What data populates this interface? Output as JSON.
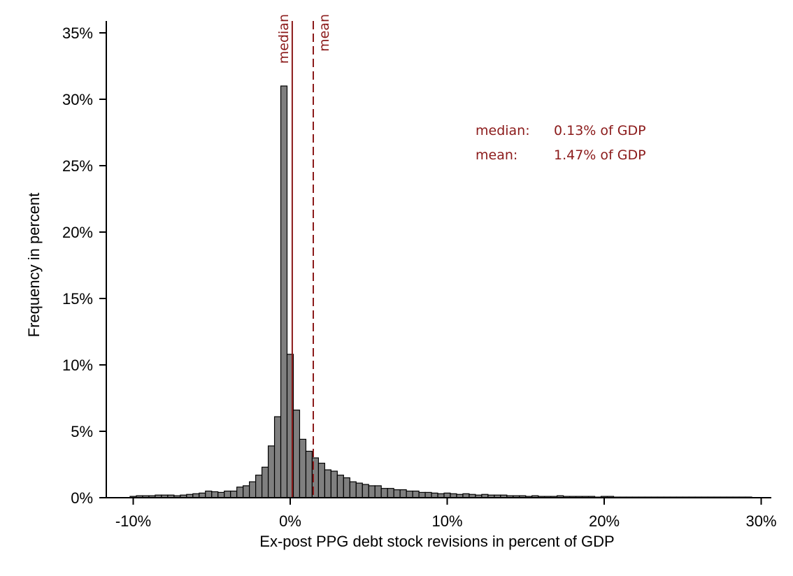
{
  "chart_data": {
    "type": "bar",
    "subtype": "histogram",
    "title": "",
    "xlabel": "Ex-post PPG debt stock revisions in percent of GDP",
    "ylabel": "Frequency in percent",
    "xlim": [
      -10.8,
      31
    ],
    "ylim": [
      0,
      35
    ],
    "x_ticks": [
      -10,
      0,
      10,
      20,
      30
    ],
    "x_tick_labels": [
      "-10%",
      "0%",
      "10%",
      "20%",
      "30%"
    ],
    "y_ticks": [
      0,
      5,
      10,
      15,
      20,
      25,
      30,
      35
    ],
    "y_tick_labels": [
      "0%",
      "5%",
      "10%",
      "15%",
      "20%",
      "25%",
      "30%",
      "35%"
    ],
    "grid": false,
    "bin_width": 0.4,
    "bins_start": [
      -10.2,
      -9.8,
      -9.4,
      -9.0,
      -8.6,
      -8.2,
      -7.8,
      -7.4,
      -7.0,
      -6.6,
      -6.2,
      -5.8,
      -5.4,
      -5.0,
      -4.6,
      -4.2,
      -3.8,
      -3.4,
      -3.0,
      -2.6,
      -2.2,
      -1.8,
      -1.4,
      -1.0,
      -0.6,
      -0.2,
      0.2,
      0.6,
      1.0,
      1.4,
      1.8,
      2.2,
      2.6,
      3.0,
      3.4,
      3.8,
      4.2,
      4.6,
      5.0,
      5.4,
      5.8,
      6.2,
      6.6,
      7.0,
      7.4,
      7.8,
      8.2,
      8.6,
      9.0,
      9.4,
      9.8,
      10.2,
      10.6,
      11.0,
      11.4,
      11.8,
      12.2,
      12.6,
      13.0,
      13.4,
      13.8,
      14.2,
      14.6,
      15.0,
      15.4,
      15.8,
      16.2,
      16.6,
      17.0,
      17.4,
      17.8,
      18.2,
      18.6,
      19.0,
      19.4,
      19.8,
      20.2,
      20.6,
      21.0,
      21.4,
      21.8,
      22.2,
      22.6,
      23.0,
      23.4,
      23.8,
      24.2,
      24.6,
      25.0,
      25.4,
      25.8,
      26.2,
      26.6,
      27.0,
      27.4,
      27.8,
      28.2,
      28.6,
      29.0
    ],
    "values": [
      0.1,
      0.15,
      0.15,
      0.15,
      0.2,
      0.2,
      0.2,
      0.15,
      0.2,
      0.25,
      0.3,
      0.35,
      0.5,
      0.45,
      0.4,
      0.5,
      0.5,
      0.8,
      0.9,
      1.2,
      1.7,
      2.3,
      3.9,
      6.1,
      31.0,
      10.8,
      6.6,
      4.4,
      3.5,
      3.0,
      2.6,
      2.1,
      2.0,
      1.7,
      1.5,
      1.2,
      1.1,
      1.0,
      0.9,
      0.9,
      0.7,
      0.7,
      0.6,
      0.6,
      0.5,
      0.5,
      0.4,
      0.4,
      0.35,
      0.3,
      0.35,
      0.3,
      0.25,
      0.3,
      0.25,
      0.2,
      0.25,
      0.2,
      0.2,
      0.2,
      0.15,
      0.15,
      0.15,
      0.1,
      0.15,
      0.1,
      0.1,
      0.1,
      0.15,
      0.1,
      0.1,
      0.1,
      0.1,
      0.1,
      0.05,
      0.1,
      0.1,
      0.05,
      0.05,
      0.05,
      0.05,
      0.05,
      0.05,
      0.05,
      0.05,
      0.05,
      0.05,
      0.05,
      0.05,
      0.05,
      0.05,
      0.05,
      0.05,
      0.05,
      0.05,
      0.05,
      0.05,
      0.05,
      0.05
    ],
    "bar_color": "#7f7f7f",
    "bar_edge_color": "#000000",
    "reference_lines": [
      {
        "name": "median",
        "x": 0.13,
        "style": "solid",
        "color": "#8b1a1a"
      },
      {
        "name": "mean",
        "x": 1.47,
        "style": "dashed",
        "color": "#8b1a1a"
      }
    ],
    "annotations": [
      {
        "label": "median:",
        "value": "0.13% of GDP"
      },
      {
        "label": "mean:",
        "value": "1.47% of GDP"
      }
    ]
  }
}
